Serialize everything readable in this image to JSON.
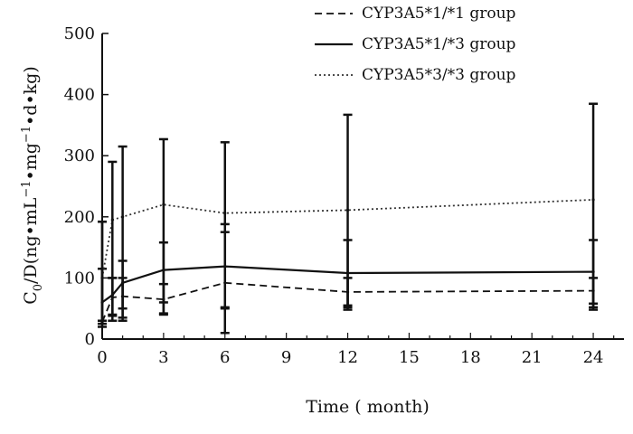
{
  "chart_data": {
    "type": "line",
    "title": "",
    "xlabel": "Time ( month)",
    "ylabel_parts": {
      "c": "C",
      "c_sub": "0",
      "main": "/D(ng•mL",
      "exp1": "−1",
      "mid": "•mg",
      "exp2": "−1",
      "end": "•d•kg)"
    },
    "xlim": [
      0,
      25.5
    ],
    "ylim": [
      0,
      500
    ],
    "xticks": [
      0,
      3,
      6,
      9,
      12,
      15,
      18,
      21,
      24
    ],
    "yticks": [
      0,
      100,
      200,
      300,
      400,
      500
    ],
    "legend_position": "top-right",
    "series": [
      {
        "name": "CYP3A5*1/*1 group",
        "style": "dashed",
        "color": "#111111",
        "x": [
          0,
          0.5,
          1,
          3,
          6,
          12,
          24
        ],
        "y": [
          28,
          68,
          70,
          65,
          92,
          77,
          79
        ],
        "err_low": [
          25,
          38,
          35,
          42,
          52,
          52,
          52
        ],
        "err_high": [
          192,
          100,
          100,
          90,
          175,
          100,
          100
        ]
      },
      {
        "name": "CYP3A5*1/*3 group",
        "style": "solid",
        "color": "#111111",
        "x": [
          0,
          0.5,
          1,
          3,
          6,
          12,
          24
        ],
        "y": [
          60,
          72,
          92,
          113,
          119,
          108,
          110
        ],
        "err_low": [
          30,
          30,
          50,
          60,
          50,
          55,
          58
        ],
        "err_high": [
          115,
          100,
          128,
          158,
          188,
          162,
          162
        ]
      },
      {
        "name": "CYP3A5*3/*3 group",
        "style": "dotted",
        "color": "#333333",
        "x": [
          0,
          0.5,
          1,
          3,
          6,
          12,
          24
        ],
        "y": [
          100,
          195,
          200,
          220,
          206,
          211,
          228
        ],
        "err_low": [
          20,
          40,
          30,
          40,
          10,
          48,
          48
        ],
        "err_high": [
          192,
          290,
          315,
          327,
          322,
          367,
          385
        ]
      }
    ]
  }
}
